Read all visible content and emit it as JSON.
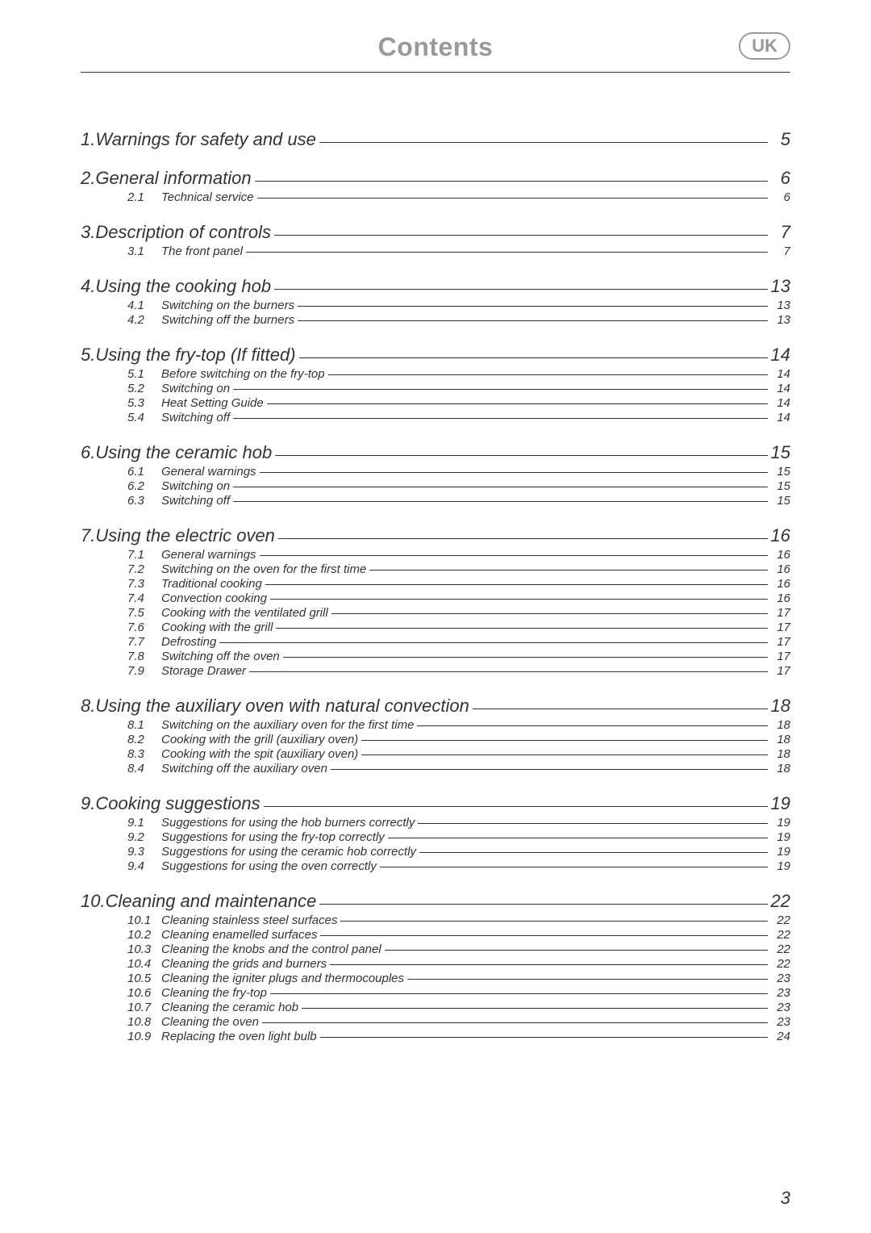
{
  "header": {
    "title": "Contents",
    "badge": "UK"
  },
  "page_number": "3",
  "toc": [
    {
      "num": "1.",
      "title": "Warnings for safety and use",
      "page": "5",
      "subs": []
    },
    {
      "num": "2.",
      "title": "General information",
      "page": "6",
      "subs": [
        {
          "num": "2.1",
          "title": "Technical service",
          "page": "6"
        }
      ]
    },
    {
      "num": "3.",
      "title": "Description of controls",
      "page": "7",
      "subs": [
        {
          "num": "3.1",
          "title": "The front panel",
          "page": "7"
        }
      ]
    },
    {
      "num": "4.",
      "title": "Using the cooking hob",
      "page": "13",
      "subs": [
        {
          "num": "4.1",
          "title": "Switching on the burners",
          "page": "13"
        },
        {
          "num": "4.2",
          "title": "Switching off the burners",
          "page": "13"
        }
      ]
    },
    {
      "num": "5.",
      "title": "Using the fry-top (If fitted)",
      "page": "14",
      "subs": [
        {
          "num": "5.1",
          "title": "Before switching on the fry-top",
          "page": "14"
        },
        {
          "num": "5.2",
          "title": "Switching on",
          "page": "14"
        },
        {
          "num": "5.3",
          "title": "Heat Setting Guide",
          "page": "14"
        },
        {
          "num": "5.4",
          "title": "Switching off",
          "page": "14"
        }
      ]
    },
    {
      "num": "6.",
      "title": "Using the ceramic hob",
      "page": "15",
      "subs": [
        {
          "num": "6.1",
          "title": "General warnings",
          "page": "15"
        },
        {
          "num": "6.2",
          "title": "Switching on",
          "page": "15"
        },
        {
          "num": "6.3",
          "title": "Switching off",
          "page": "15"
        }
      ]
    },
    {
      "num": "7.",
      "title": "Using the electric oven",
      "page": "16",
      "subs": [
        {
          "num": "7.1",
          "title": "General warnings",
          "page": "16"
        },
        {
          "num": "7.2",
          "title": "Switching on the oven for the first time",
          "page": "16"
        },
        {
          "num": "7.3",
          "title": "Traditional cooking",
          "page": "16"
        },
        {
          "num": "7.4",
          "title": "Convection cooking",
          "page": "16"
        },
        {
          "num": "7.5",
          "title": "Cooking with the ventilated grill",
          "page": "17"
        },
        {
          "num": "7.6",
          "title": "Cooking with the grill",
          "page": "17"
        },
        {
          "num": "7.7",
          "title": "Defrosting",
          "page": "17"
        },
        {
          "num": "7.8",
          "title": "Switching off the oven",
          "page": "17"
        },
        {
          "num": "7.9",
          "title": "Storage Drawer",
          "page": "17"
        }
      ]
    },
    {
      "num": "8.",
      "title": "Using the auxiliary oven with natural convection",
      "page": "18",
      "subs": [
        {
          "num": "8.1",
          "title": "Switching on the auxiliary oven for the first time",
          "page": "18"
        },
        {
          "num": "8.2",
          "title": "Cooking with the grill (auxiliary oven)",
          "page": "18"
        },
        {
          "num": "8.3",
          "title": "Cooking with the spit (auxiliary oven)",
          "page": "18"
        },
        {
          "num": "8.4",
          "title": "Switching off the auxiliary oven",
          "page": "18"
        }
      ]
    },
    {
      "num": "9.",
      "title": "Cooking suggestions",
      "page": "19",
      "subs": [
        {
          "num": "9.1",
          "title": "Suggestions for using the hob burners correctly",
          "page": "19"
        },
        {
          "num": "9.2",
          "title": "Suggestions for using the fry-top correctly",
          "page": "19"
        },
        {
          "num": "9.3",
          "title": "Suggestions for using the ceramic hob correctly",
          "page": "19"
        },
        {
          "num": "9.4",
          "title": "Suggestions for using the oven correctly",
          "page": "19"
        }
      ]
    },
    {
      "num": "10.",
      "title": "Cleaning and maintenance",
      "page": "22",
      "subs": [
        {
          "num": "10.1",
          "title": "Cleaning stainless steel surfaces",
          "page": "22"
        },
        {
          "num": "10.2",
          "title": "Cleaning enamelled surfaces",
          "page": "22"
        },
        {
          "num": "10.3",
          "title": "Cleaning the knobs and the control panel",
          "page": "22"
        },
        {
          "num": "10.4",
          "title": "Cleaning the grids and burners",
          "page": "22"
        },
        {
          "num": "10.5",
          "title": "Cleaning the igniter plugs and thermocouples",
          "page": "23"
        },
        {
          "num": "10.6",
          "title": "Cleaning the fry-top",
          "page": "23"
        },
        {
          "num": "10.7",
          "title": "Cleaning the ceramic hob",
          "page": "23"
        },
        {
          "num": "10.8",
          "title": "Cleaning the oven",
          "page": "23"
        },
        {
          "num": "10.9",
          "title": "Replacing the oven light bulb",
          "page": "24"
        }
      ]
    }
  ]
}
